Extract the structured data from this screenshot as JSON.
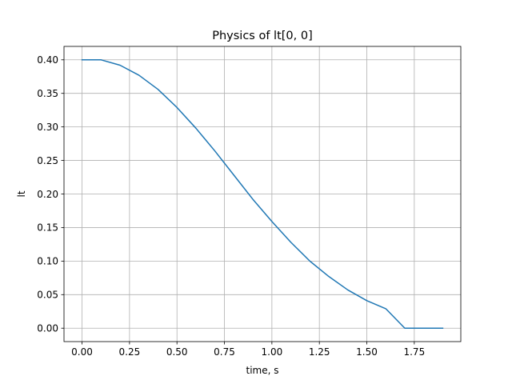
{
  "chart_data": {
    "type": "line",
    "title": "Physics of lt[0, 0]",
    "xlabel": "time, s",
    "ylabel": "lt",
    "xlim": [
      -0.095,
      1.995
    ],
    "ylim": [
      -0.02,
      0.42
    ],
    "grid": true,
    "line_color": "#1f77b4",
    "grid_color": "#b0b0b0",
    "x_ticks": [
      0.0,
      0.25,
      0.5,
      0.75,
      1.0,
      1.25,
      1.5,
      1.75
    ],
    "x_tick_labels": [
      "0.00",
      "0.25",
      "0.50",
      "0.75",
      "1.00",
      "1.25",
      "1.50",
      "1.75"
    ],
    "y_ticks": [
      0.0,
      0.05,
      0.1,
      0.15,
      0.2,
      0.25,
      0.3,
      0.35,
      0.4
    ],
    "y_tick_labels": [
      "0.00",
      "0.05",
      "0.10",
      "0.15",
      "0.20",
      "0.25",
      "0.30",
      "0.35",
      "0.40"
    ],
    "series": [
      {
        "x": [
          0.0,
          0.1,
          0.2,
          0.3,
          0.4,
          0.5,
          0.6,
          0.7,
          0.8,
          0.9,
          1.0,
          1.1,
          1.2,
          1.3,
          1.4,
          1.5,
          1.6,
          1.7,
          1.8,
          1.9
        ],
        "y": [
          0.4,
          0.4,
          0.392,
          0.377,
          0.356,
          0.329,
          0.298,
          0.264,
          0.228,
          0.192,
          0.159,
          0.128,
          0.1,
          0.077,
          0.057,
          0.041,
          0.029,
          0.0,
          0.0,
          0.0
        ]
      }
    ]
  }
}
